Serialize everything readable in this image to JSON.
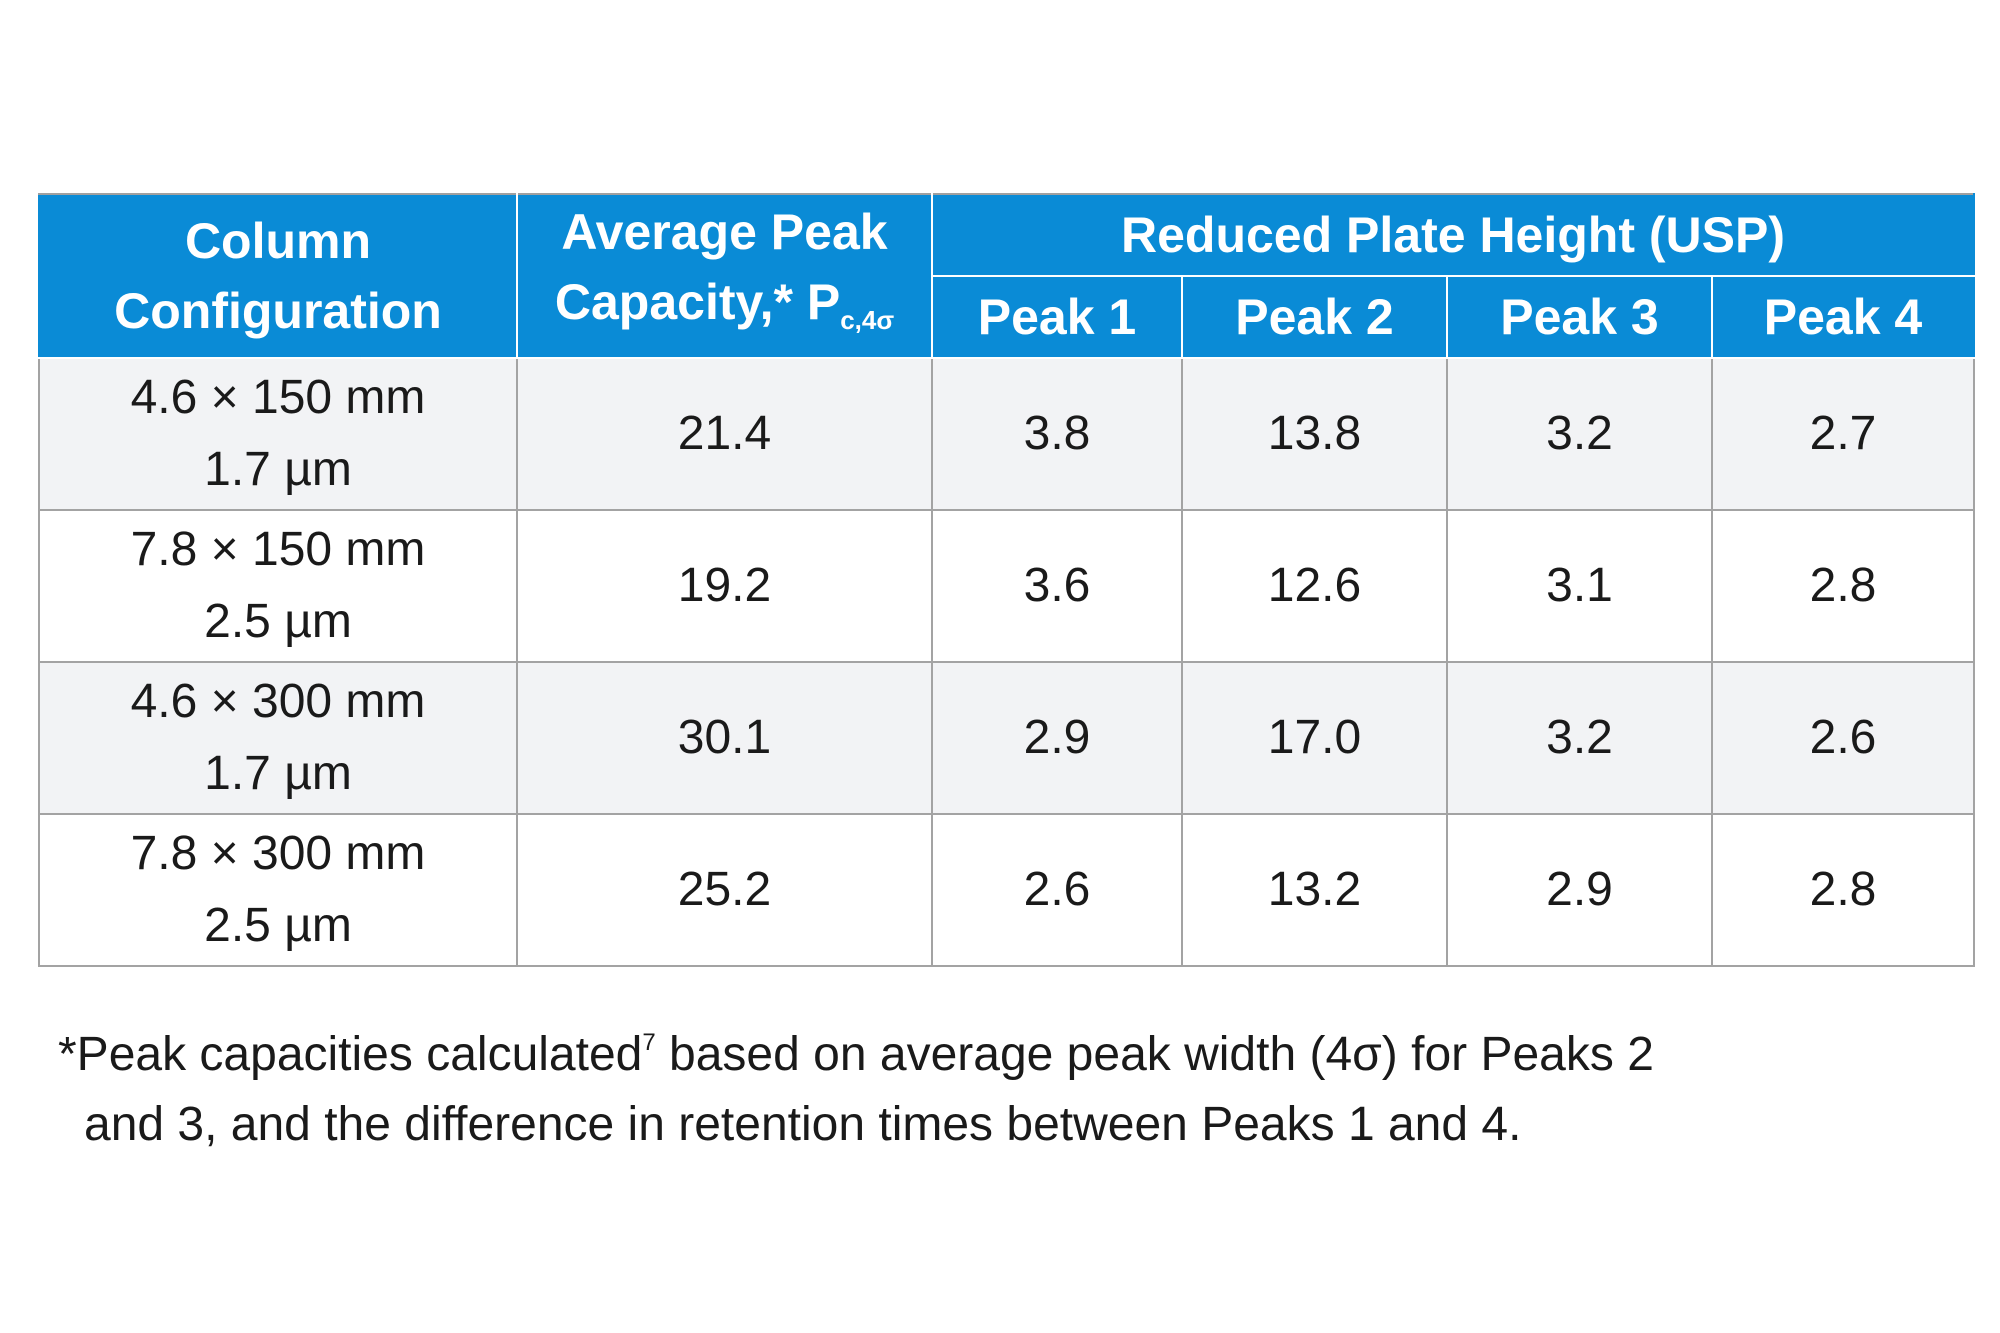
{
  "table": {
    "header": {
      "column_configuration": [
        "Column",
        "Configuration"
      ],
      "average_peak_capacity": [
        "Average Peak",
        "Capacity,* P"
      ],
      "average_peak_capacity_subscript": "c,4σ",
      "reduced_plate_height_group": "Reduced Plate Height (USP)",
      "peaks": [
        "Peak 1",
        "Peak 2",
        "Peak 3",
        "Peak 4"
      ]
    },
    "rows": [
      {
        "config": [
          "4.6 × 150 mm",
          "1.7 µm"
        ],
        "capacity": "21.4",
        "peaks": [
          "3.8",
          "13.8",
          "3.2",
          "2.7"
        ]
      },
      {
        "config": [
          "7.8 × 150 mm",
          "2.5 µm"
        ],
        "capacity": "19.2",
        "peaks": [
          "3.6",
          "12.6",
          "3.1",
          "2.8"
        ]
      },
      {
        "config": [
          "4.6 × 300 mm",
          "1.7 µm"
        ],
        "capacity": "30.1",
        "peaks": [
          "2.9",
          "17.0",
          "3.2",
          "2.6"
        ]
      },
      {
        "config": [
          "7.8 × 300 mm",
          "2.5 µm"
        ],
        "capacity": "25.2",
        "peaks": [
          "2.6",
          "13.2",
          "2.9",
          "2.8"
        ]
      }
    ]
  },
  "footnote": {
    "line1_before_sup": "*Peak capacities calculated",
    "superscript": "7",
    "line1_after_sup": " based on average peak width (4σ) for Peaks 2",
    "line2": "and 3, and the difference in retention times between Peaks 1 and 4."
  },
  "colors": {
    "header_blue": "#0a8bd6",
    "shaded_row": "#f2f3f5",
    "grid_line": "#a3a3a3"
  }
}
